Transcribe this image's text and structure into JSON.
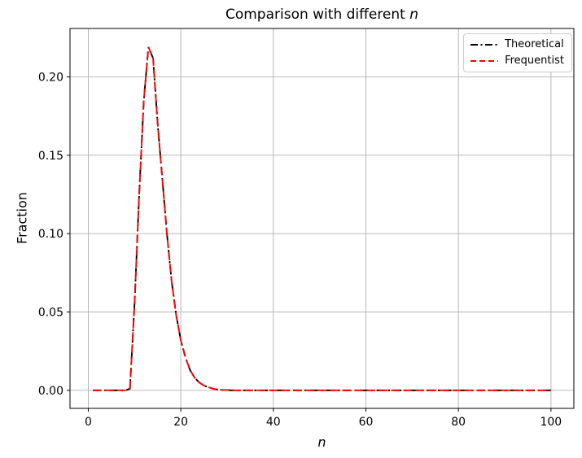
{
  "title": {
    "prefix": "Comparison with different ",
    "emphasis": "n"
  },
  "legend": {
    "position": "upper right",
    "items": [
      {
        "label": "Theoretical",
        "color": "#000000",
        "linestyle": "dashdot"
      },
      {
        "label": "Frequentist",
        "color": "#ff0000",
        "linestyle": "dashed"
      }
    ]
  },
  "chart_data": {
    "type": "line",
    "title": "Comparison with different n",
    "xlabel": "n",
    "ylabel": "Fraction",
    "grid": true,
    "grid_color": "#b0b0b0",
    "spine_color": "#000000",
    "legend_position": "upper right",
    "xlim": [
      -3.95,
      104.95
    ],
    "ylim": [
      -0.0115,
      0.2309
    ],
    "x_ticks": [
      0,
      20,
      40,
      60,
      80,
      100
    ],
    "y_tick_values": [
      0.0,
      0.05,
      0.1,
      0.15,
      0.2
    ],
    "y_tick_labels": [
      "0.00",
      "0.05",
      "0.10",
      "0.15",
      "0.20"
    ],
    "x": [
      1,
      2,
      3,
      4,
      5,
      6,
      7,
      8,
      9,
      10,
      11,
      12,
      13,
      14,
      15,
      16,
      17,
      18,
      19,
      20,
      21,
      22,
      23,
      24,
      25,
      26,
      27,
      28,
      29,
      30,
      31,
      32,
      33,
      34,
      35,
      36,
      37,
      38,
      39,
      40,
      41,
      42,
      43,
      44,
      45,
      46,
      47,
      48,
      49,
      50,
      51,
      52,
      53,
      54,
      55,
      56,
      57,
      58,
      59,
      60,
      61,
      62,
      63,
      64,
      65,
      66,
      67,
      68,
      69,
      70,
      71,
      72,
      73,
      74,
      75,
      76,
      77,
      78,
      79,
      80,
      81,
      82,
      83,
      84,
      85,
      86,
      87,
      88,
      89,
      90,
      91,
      92,
      93,
      94,
      95,
      96,
      97,
      98,
      99,
      100
    ],
    "series": [
      {
        "name": "Theoretical",
        "color": "#000000",
        "linestyle": "dashdot",
        "values": [
          0,
          0,
          0,
          0,
          0,
          0,
          0,
          0,
          0.001,
          0.055,
          0.125,
          0.185,
          0.219,
          0.212,
          0.17,
          0.135,
          0.1,
          0.07,
          0.048,
          0.032,
          0.021,
          0.013,
          0.008,
          0.005,
          0.003,
          0.002,
          0.001,
          0.0005,
          0.0003,
          0.0002,
          0,
          0,
          0,
          0,
          0,
          0,
          0,
          0,
          0,
          0,
          0,
          0,
          0,
          0,
          0,
          0,
          0,
          0,
          0,
          0,
          0,
          0,
          0,
          0,
          0,
          0,
          0,
          0,
          0,
          0,
          0,
          0,
          0,
          0,
          0,
          0,
          0,
          0,
          0,
          0,
          0,
          0,
          0,
          0,
          0,
          0,
          0,
          0,
          0,
          0,
          0,
          0,
          0,
          0,
          0,
          0,
          0,
          0,
          0,
          0,
          0,
          0,
          0,
          0,
          0,
          0,
          0,
          0,
          0,
          0
        ]
      },
      {
        "name": "Frequentist",
        "color": "#ff0000",
        "linestyle": "dashed",
        "values": [
          0,
          0,
          0,
          0,
          0,
          0,
          0,
          0,
          0.001,
          0.055,
          0.125,
          0.185,
          0.219,
          0.212,
          0.17,
          0.135,
          0.1,
          0.07,
          0.048,
          0.032,
          0.021,
          0.013,
          0.008,
          0.005,
          0.003,
          0.002,
          0.001,
          0.0005,
          0.0003,
          0.0002,
          0,
          0,
          0,
          0,
          0,
          0,
          0,
          0,
          0,
          0,
          0,
          0,
          0,
          0,
          0,
          0,
          0,
          0,
          0,
          0,
          0,
          0,
          0,
          0,
          0,
          0,
          0,
          0,
          0,
          0,
          0,
          0,
          0,
          0,
          0,
          0,
          0,
          0,
          0,
          0,
          0,
          0,
          0,
          0,
          0,
          0,
          0,
          0,
          0,
          0,
          0,
          0,
          0,
          0,
          0,
          0,
          0,
          0,
          0,
          0,
          0,
          0,
          0,
          0,
          0,
          0,
          0,
          0,
          0,
          0
        ]
      }
    ]
  }
}
